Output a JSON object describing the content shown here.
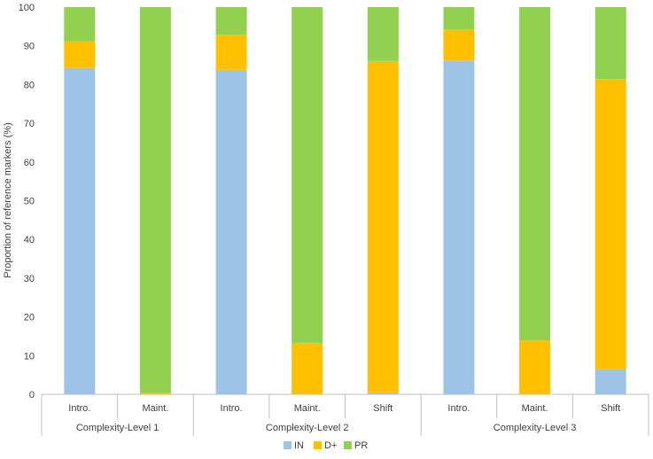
{
  "chart_data": {
    "type": "bar",
    "stacked": true,
    "title": "",
    "ylabel": "Proportion of reference markers (%)",
    "xlabel": "",
    "ylim": [
      0,
      100
    ],
    "yticks": [
      0,
      10,
      20,
      30,
      40,
      50,
      60,
      70,
      80,
      90,
      100
    ],
    "grid": false,
    "legend_position": "bottom-center",
    "groups": [
      {
        "label": "Complexity-Level 1",
        "categories": [
          "Intro.",
          "Maint."
        ]
      },
      {
        "label": "Complexity-Level 2",
        "categories": [
          "Intro.",
          "Maint.",
          "Shift"
        ]
      },
      {
        "label": "Complexity-Level 3",
        "categories": [
          "Intro.",
          "Maint.",
          "Shift"
        ]
      }
    ],
    "categories": [
      "Intro.",
      "Maint.",
      "Intro.",
      "Maint.",
      "Shift",
      "Intro.",
      "Maint.",
      "Shift"
    ],
    "series": [
      {
        "name": "IN",
        "color": "#9DC3E6",
        "values": [
          84.3,
          0,
          83.8,
          0,
          0.5,
          86.2,
          0,
          6.5
        ]
      },
      {
        "name": "D+",
        "color": "#FFC000",
        "values": [
          6.9,
          0.3,
          9.1,
          13.3,
          85.6,
          8.0,
          13.9,
          74.9
        ]
      },
      {
        "name": "PR",
        "color": "#92D050",
        "values": [
          8.8,
          99.7,
          7.1,
          86.7,
          13.9,
          5.8,
          86.1,
          18.6
        ]
      }
    ]
  }
}
